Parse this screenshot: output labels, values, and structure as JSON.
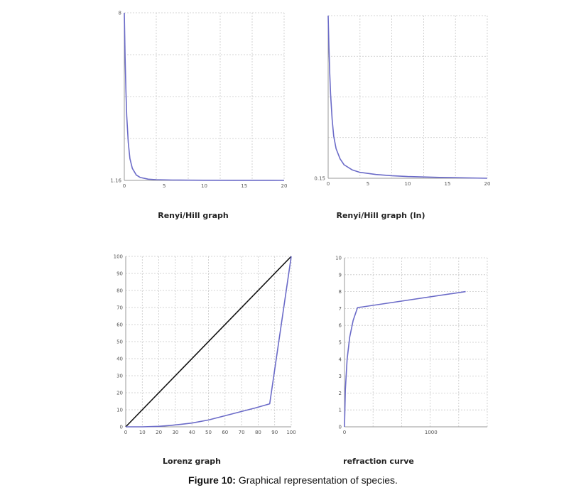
{
  "caption": {
    "label": "Figure 10:",
    "text": "Graphical representation of species."
  },
  "chart_data": [
    {
      "id": "p1",
      "type": "line",
      "title": "Renyi/Hill graph",
      "xlim": [
        0,
        20
      ],
      "ylim": [
        1.16,
        8
      ],
      "xticks": [
        0,
        5,
        10,
        15,
        20
      ],
      "yticks": [
        1.16,
        8
      ],
      "ytick_labels": [
        "1.16",
        "8"
      ],
      "grid": true,
      "series": [
        {
          "color": "#6b6bc8",
          "x": [
            0,
            0.1,
            0.2,
            0.3,
            0.5,
            0.7,
            1,
            1.5,
            2,
            3,
            4,
            6,
            8,
            10,
            14,
            20
          ],
          "y": [
            8,
            6.2,
            4.8,
            3.8,
            2.7,
            2.05,
            1.65,
            1.38,
            1.28,
            1.21,
            1.19,
            1.175,
            1.17,
            1.166,
            1.163,
            1.16
          ]
        }
      ]
    },
    {
      "id": "p2",
      "type": "line",
      "title": "Renyi/Hill graph (ln)",
      "xlim": [
        0,
        20
      ],
      "ylim": [
        0.15,
        2.08
      ],
      "xticks": [
        0,
        5,
        10,
        15,
        20
      ],
      "yticks": [
        0.15
      ],
      "ytick_labels": [
        "0.15"
      ],
      "grid": true,
      "series": [
        {
          "color": "#6b6bc8",
          "x": [
            0,
            0.1,
            0.2,
            0.3,
            0.5,
            0.7,
            1,
            1.5,
            2,
            3,
            4,
            6,
            8,
            10,
            14,
            20
          ],
          "y": [
            2.08,
            1.7,
            1.4,
            1.15,
            0.85,
            0.65,
            0.5,
            0.38,
            0.31,
            0.25,
            0.22,
            0.195,
            0.18,
            0.17,
            0.16,
            0.15
          ]
        }
      ]
    },
    {
      "id": "p3",
      "type": "line",
      "title": "Lorenz graph",
      "xlim": [
        0,
        100
      ],
      "ylim": [
        0,
        100
      ],
      "xticks": [
        0,
        10,
        20,
        30,
        40,
        50,
        60,
        70,
        80,
        90,
        100
      ],
      "yticks": [
        0,
        10,
        20,
        30,
        40,
        50,
        60,
        70,
        80,
        90,
        100
      ],
      "grid": true,
      "series": [
        {
          "color": "#111111",
          "x": [
            0,
            100
          ],
          "y": [
            0,
            100
          ]
        },
        {
          "color": "#6b6bc8",
          "x": [
            0,
            10,
            20,
            27,
            40,
            50,
            60,
            70,
            78,
            87,
            100
          ],
          "y": [
            0,
            0,
            0.3,
            0.8,
            2.2,
            4,
            6.5,
            9,
            11,
            13.5,
            100
          ]
        }
      ]
    },
    {
      "id": "p4",
      "type": "line",
      "title": "refraction curve",
      "xlim": [
        0,
        1650
      ],
      "ylim": [
        0,
        10
      ],
      "xticks": [
        0,
        1000
      ],
      "yticks": [
        0,
        1,
        2,
        3,
        4,
        5,
        6,
        7,
        8,
        9,
        10
      ],
      "grid": true,
      "series": [
        {
          "color": "#6b6bc8",
          "x": [
            0,
            10,
            30,
            60,
            100,
            150,
            1400
          ],
          "y": [
            0,
            2.2,
            4,
            5.3,
            6.3,
            7.05,
            8
          ]
        }
      ]
    }
  ]
}
